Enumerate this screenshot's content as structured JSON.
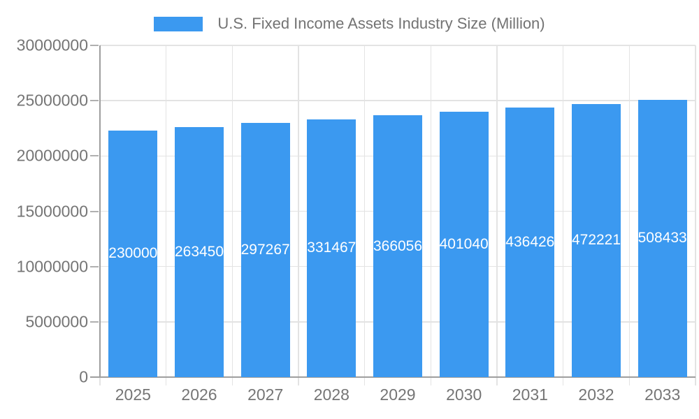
{
  "legend": {
    "label": "U.S. Fixed Income Assets Industry Size (Million)"
  },
  "colors": {
    "bar": "#3B99F0",
    "legend_swatch": "#3B99F0",
    "value_label": "#ffffff",
    "axis_label": "#757575",
    "gridline": "#e3e3e3",
    "axis_line": "#9e9e9e",
    "tick": "#b0b0b0",
    "background": "#ffffff"
  },
  "chart_data": {
    "type": "bar",
    "title": "U.S. Fixed Income Assets Industry Size (Million)",
    "legend_position": "top",
    "grid": true,
    "categories": [
      "2025",
      "2026",
      "2027",
      "2028",
      "2029",
      "2030",
      "2031",
      "2032",
      "2033"
    ],
    "series": [
      {
        "name": "U.S. Fixed Income Assets Industry Size (Million)",
        "values": [
          22300000,
          22634500,
          22972676,
          23314678,
          23660562,
          24010400,
          24364266,
          24722215,
          25084330
        ]
      }
    ],
    "value_labels_visible": true,
    "value_label_position": "bar-center",
    "xlabel": "",
    "ylabel": "",
    "ylim": [
      0,
      30000000
    ],
    "y_ticks": [
      0,
      5000000,
      10000000,
      15000000,
      20000000,
      25000000,
      30000000
    ],
    "y_tick_labels": [
      "0",
      "5000000",
      "10000000",
      "15000000",
      "20000000",
      "25000000",
      "30000000"
    ]
  }
}
